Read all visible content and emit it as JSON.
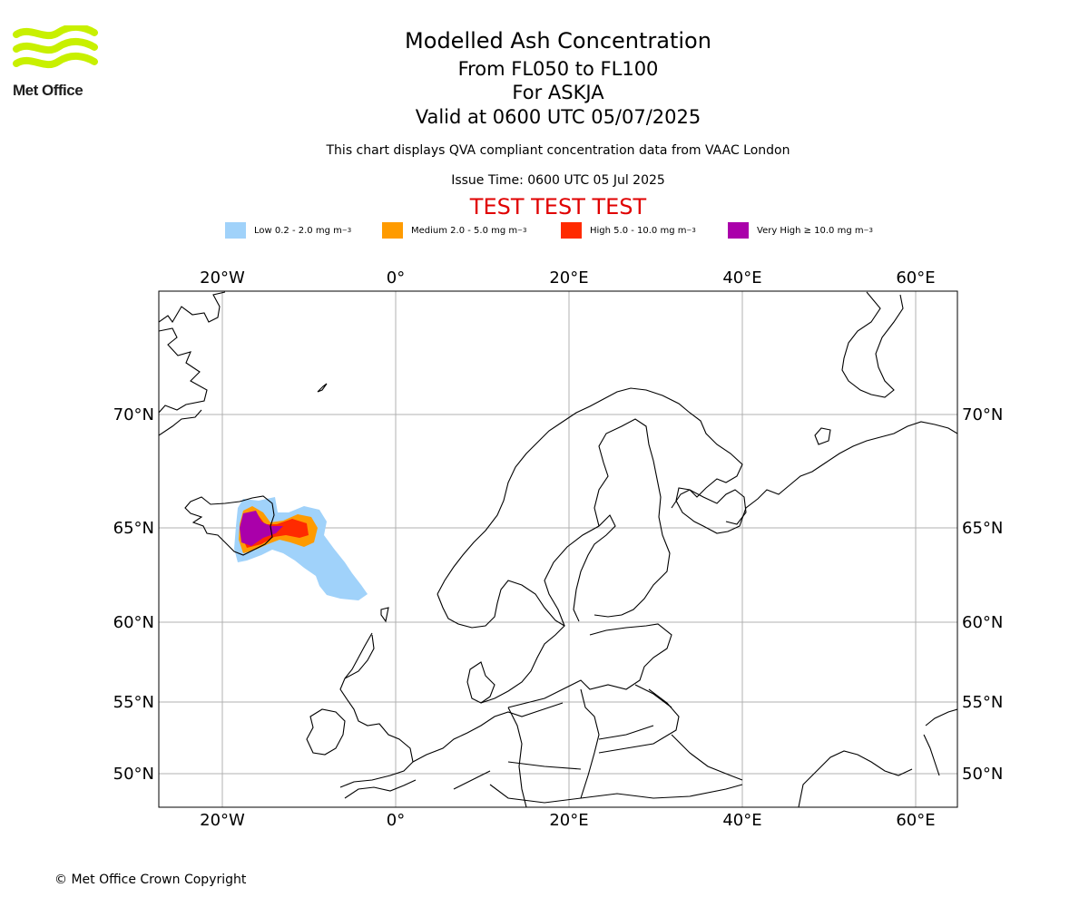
{
  "logo": {
    "text": "Met Office",
    "color": "#c8f000"
  },
  "title": {
    "line1": "Modelled Ash Concentration",
    "line2": "From FL050 to FL100",
    "line3": "For ASKJA",
    "line4": "Valid at 0600 UTC 05/07/2025"
  },
  "subtitle": "This chart displays QVA compliant concentration data from VAAC London",
  "issue_time": "Issue Time: 0600 UTC 05 Jul 2025",
  "test_banner": "TEST TEST TEST",
  "legend": [
    {
      "label": "Low 0.2 - 2.0 mg m",
      "unit_exp": "−3",
      "color": "#a0d2fa"
    },
    {
      "label": "Medium 2.0 - 5.0 mg m",
      "unit_exp": "−3",
      "color": "#ff9b00"
    },
    {
      "label": "High 5.0 - 10.0 mg m",
      "unit_exp": "−3",
      "color": "#ff2a00"
    },
    {
      "label": "Very High ≥ 10.0 mg m",
      "unit_exp": "−3",
      "color": "#aa00aa"
    }
  ],
  "map": {
    "lon_ticks": [
      "20°W",
      "0°",
      "20°E",
      "40°E",
      "60°E"
    ],
    "lat_ticks": [
      "70°N",
      "65°N",
      "60°N",
      "55°N",
      "50°N"
    ],
    "gridlines": true,
    "region": "North Atlantic / Northern Europe"
  },
  "copyright": "© Met Office Crown Copyright"
}
